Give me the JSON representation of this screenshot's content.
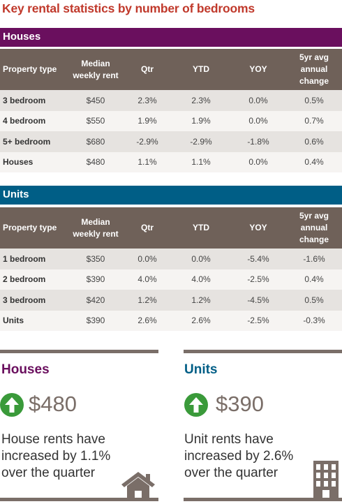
{
  "title": "Key rental statistics by number of bedrooms",
  "columns": {
    "type": "Property type",
    "rent": "Median weekly rent",
    "qtr": "Qtr",
    "ytd": "YTD",
    "yoy": "YOY",
    "fivey": "5yr avg annual change"
  },
  "houses": {
    "heading": "Houses",
    "rows": [
      {
        "type": "3 bedroom",
        "rent": "$450",
        "qtr": "2.3%",
        "ytd": "2.3%",
        "yoy": "0.0%",
        "fivey": "0.5%"
      },
      {
        "type": "4 bedroom",
        "rent": "$550",
        "qtr": "1.9%",
        "ytd": "1.9%",
        "yoy": "0.0%",
        "fivey": "0.7%"
      },
      {
        "type": "5+ bedroom",
        "rent": "$680",
        "qtr": "-2.9%",
        "ytd": "-2.9%",
        "yoy": "-1.8%",
        "fivey": "0.6%"
      },
      {
        "type": "Houses",
        "rent": "$480",
        "qtr": "1.1%",
        "ytd": "1.1%",
        "yoy": "0.0%",
        "fivey": "0.4%"
      }
    ]
  },
  "units": {
    "heading": "Units",
    "rows": [
      {
        "type": "1 bedroom",
        "rent": "$350",
        "qtr": "0.0%",
        "ytd": "0.0%",
        "yoy": "-5.4%",
        "fivey": "-1.6%"
      },
      {
        "type": "2 bedroom",
        "rent": "$390",
        "qtr": "4.0%",
        "ytd": "4.0%",
        "yoy": "-2.5%",
        "fivey": "0.4%"
      },
      {
        "type": "3 bedroom",
        "rent": "$420",
        "qtr": "1.2%",
        "ytd": "1.2%",
        "yoy": "-4.5%",
        "fivey": "0.5%"
      },
      {
        "type": "Units",
        "rent": "$390",
        "qtr": "2.6%",
        "ytd": "2.6%",
        "yoy": "-2.5%",
        "fivey": "-0.3%"
      }
    ]
  },
  "summary": {
    "houses": {
      "title": "Houses",
      "value": "$480",
      "line1": "House rents have",
      "line2": "increased by 1.1%",
      "line3": "over the quarter"
    },
    "units": {
      "title": "Units",
      "value": "$390",
      "line1": "Unit rents have",
      "line2": "increased by 2.6%",
      "line3": "over the quarter"
    }
  },
  "colors": {
    "title": "#c0392b",
    "houses_accent": "#6a0f5e",
    "units_accent": "#005e86",
    "header_bg": "#6f6159",
    "arrow_green": "#3a9a3a",
    "value_grey": "#7a6e68"
  },
  "icons": {
    "up": "arrow-up-icon",
    "house": "house-icon",
    "building": "apartment-building-icon"
  }
}
